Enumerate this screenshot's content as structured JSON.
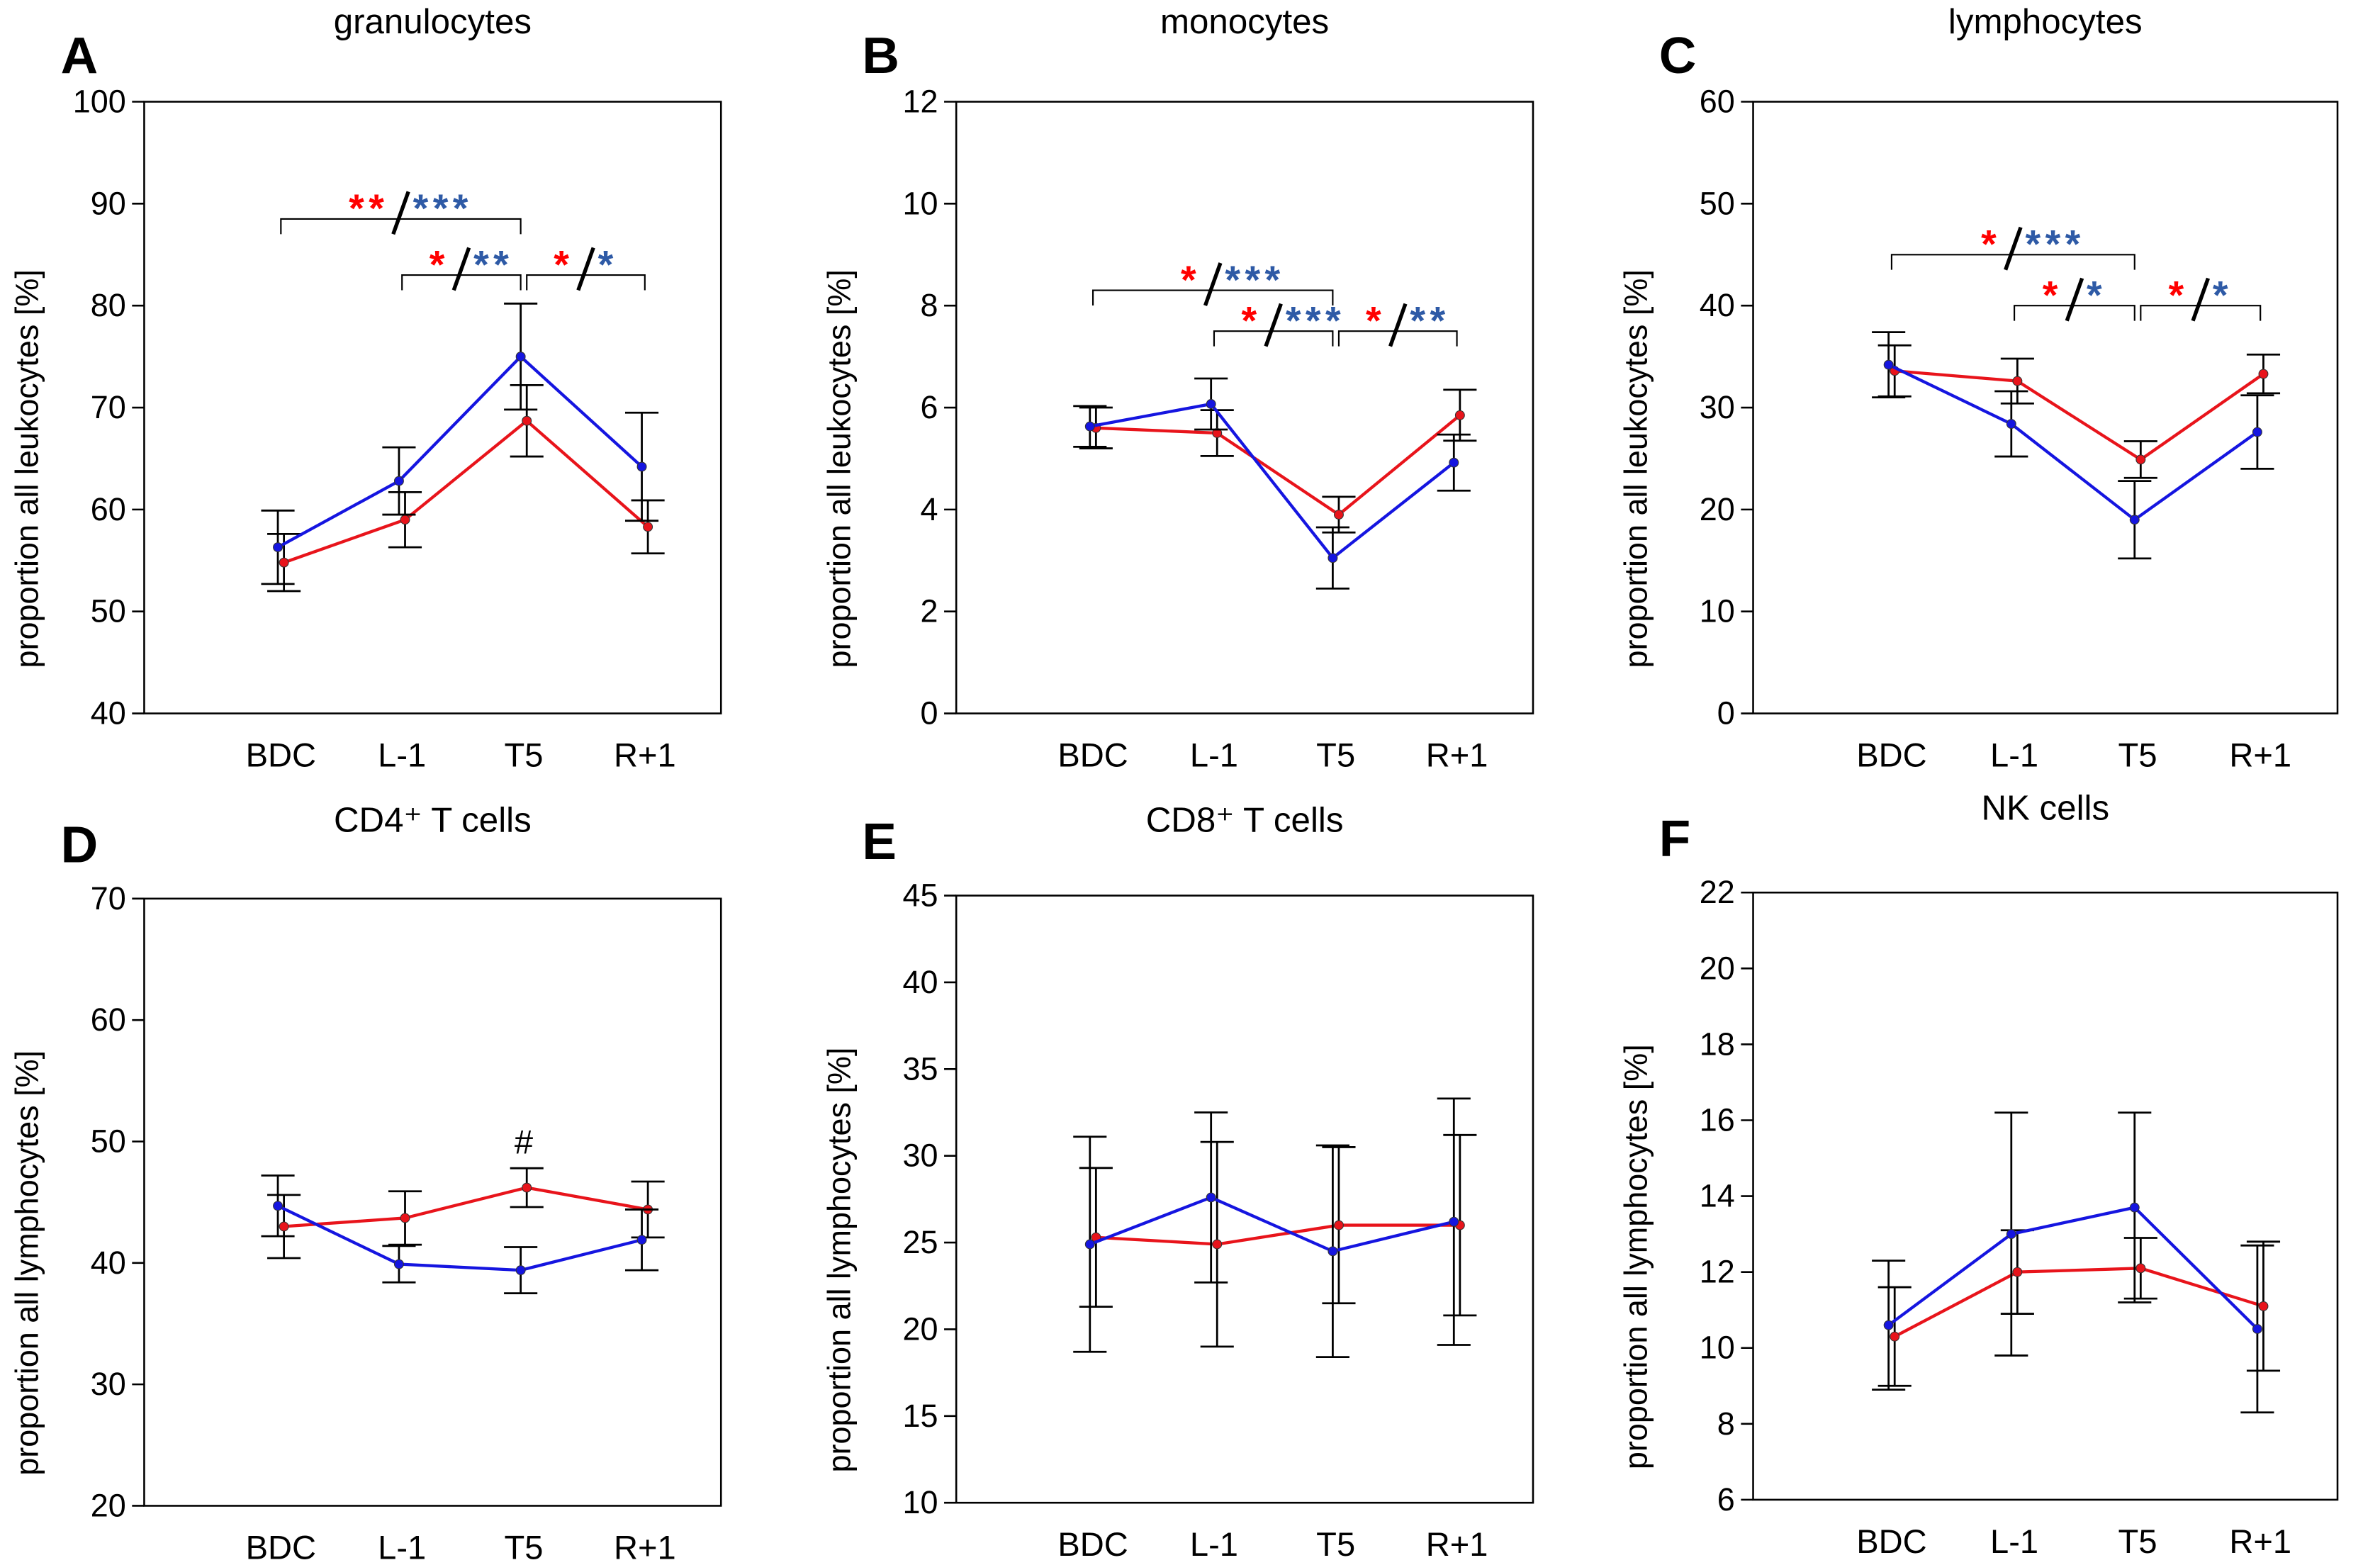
{
  "colors": {
    "series_red": "#e8141b",
    "series_blue": "#1515e0",
    "star_red": "#ff0000",
    "star_blue": "#2e5aa6",
    "axis": "#000000"
  },
  "chart_data": [
    {
      "letter": "A",
      "type": "line",
      "title": "granulocytes",
      "ylabel": "proportion all leukocytes [%]",
      "ylim": [
        40,
        100
      ],
      "yticks": [
        40,
        50,
        60,
        70,
        80,
        90,
        100
      ],
      "categories": [
        "BDC",
        "L-1",
        "T5",
        "R+1"
      ],
      "series": [
        {
          "color": "red",
          "values": [
            54.8,
            59.0,
            68.7,
            58.3
          ],
          "error": [
            2.8,
            2.7,
            3.5,
            2.6
          ]
        },
        {
          "color": "blue",
          "values": [
            56.3,
            62.8,
            75.0,
            64.2
          ],
          "error": [
            3.6,
            3.3,
            5.2,
            5.3
          ]
        }
      ],
      "significance": [
        {
          "from": "BDC",
          "to": "T5",
          "y": 88.5,
          "red": "**",
          "blue": "***"
        },
        {
          "from": "L-1",
          "to": "T5",
          "y": 83,
          "red": "*",
          "blue": "**"
        },
        {
          "from": "T5",
          "to": "R+1",
          "y": 83,
          "red": "*",
          "blue": "*"
        }
      ],
      "annotations": []
    },
    {
      "letter": "B",
      "type": "line",
      "title": "monocytes",
      "ylabel": "proportion all leukocytes [%]",
      "ylim": [
        0,
        12
      ],
      "yticks": [
        0,
        2,
        4,
        6,
        8,
        10,
        12
      ],
      "categories": [
        "BDC",
        "L-1",
        "T5",
        "R+1"
      ],
      "series": [
        {
          "color": "red",
          "values": [
            5.6,
            5.5,
            3.9,
            5.85
          ],
          "error": [
            0.4,
            0.45,
            0.35,
            0.5
          ]
        },
        {
          "color": "blue",
          "values": [
            5.63,
            6.07,
            3.05,
            4.92
          ],
          "error": [
            0.4,
            0.5,
            0.6,
            0.55
          ]
        }
      ],
      "significance": [
        {
          "from": "BDC",
          "to": "T5",
          "y": 8.3,
          "red": "*",
          "blue": "***"
        },
        {
          "from": "L-1",
          "to": "T5",
          "y": 7.5,
          "red": "*",
          "blue": "***"
        },
        {
          "from": "T5",
          "to": "R+1",
          "y": 7.5,
          "red": "*",
          "blue": "**"
        }
      ],
      "annotations": []
    },
    {
      "letter": "C",
      "type": "line",
      "title": "lymphocytes",
      "ylabel": "proportion all leukocytes [%]",
      "ylim": [
        0,
        60
      ],
      "yticks": [
        0,
        10,
        20,
        30,
        40,
        50,
        60
      ],
      "categories": [
        "BDC",
        "L-1",
        "T5",
        "R+1"
      ],
      "series": [
        {
          "color": "red",
          "values": [
            33.6,
            32.6,
            24.9,
            33.3
          ],
          "error": [
            2.5,
            2.2,
            1.8,
            1.9
          ]
        },
        {
          "color": "blue",
          "values": [
            34.2,
            28.4,
            19.0,
            27.6
          ],
          "error": [
            3.2,
            3.2,
            3.8,
            3.6
          ]
        }
      ],
      "significance": [
        {
          "from": "BDC",
          "to": "T5",
          "y": 45,
          "red": "*",
          "blue": "***"
        },
        {
          "from": "L-1",
          "to": "T5",
          "y": 40,
          "red": "*",
          "blue": "*"
        },
        {
          "from": "T5",
          "to": "R+1",
          "y": 40,
          "red": "*",
          "blue": "*"
        }
      ],
      "annotations": []
    },
    {
      "letter": "D",
      "type": "line",
      "title": "CD4⁺ T cells",
      "ylabel": "proportion all lymphocytes [%]",
      "ylim": [
        20,
        70
      ],
      "yticks": [
        20,
        30,
        40,
        50,
        60,
        70
      ],
      "categories": [
        "BDC",
        "L-1",
        "T5",
        "R+1"
      ],
      "series": [
        {
          "color": "red",
          "values": [
            43.0,
            43.7,
            46.2,
            44.4
          ],
          "error": [
            2.6,
            2.2,
            1.6,
            2.3
          ]
        },
        {
          "color": "blue",
          "values": [
            44.7,
            39.9,
            39.4,
            41.9
          ],
          "error": [
            2.5,
            1.5,
            1.9,
            2.5
          ]
        }
      ],
      "significance": [],
      "annotations": [
        {
          "category": "T5",
          "y": 49,
          "text": "#"
        }
      ]
    },
    {
      "letter": "E",
      "type": "line",
      "title": "CD8⁺ T cells",
      "ylabel": "proportion all lymphocytes [%]",
      "ylim": [
        10,
        45
      ],
      "yticks": [
        10,
        15,
        20,
        25,
        30,
        35,
        40,
        45
      ],
      "categories": [
        "BDC",
        "L-1",
        "T5",
        "R+1"
      ],
      "series": [
        {
          "color": "red",
          "values": [
            25.3,
            24.9,
            26.0,
            26.0
          ],
          "error": [
            4.0,
            5.9,
            4.5,
            5.2
          ]
        },
        {
          "color": "blue",
          "values": [
            24.9,
            27.6,
            24.5,
            26.2
          ],
          "error": [
            6.2,
            4.9,
            6.1,
            7.1
          ]
        }
      ],
      "significance": [],
      "annotations": []
    },
    {
      "letter": "F",
      "type": "line",
      "title": "NK cells",
      "ylabel": "proportion all lymphocytes [%]",
      "ylim": [
        6,
        22
      ],
      "yticks": [
        6,
        8,
        10,
        12,
        14,
        16,
        18,
        20,
        22
      ],
      "categories": [
        "BDC",
        "L-1",
        "T5",
        "R+1"
      ],
      "series": [
        {
          "color": "red",
          "values": [
            10.3,
            12.0,
            12.1,
            11.1
          ],
          "error": [
            1.3,
            1.1,
            0.8,
            1.7
          ]
        },
        {
          "color": "blue",
          "values": [
            10.6,
            13.0,
            13.7,
            10.5
          ],
          "error": [
            1.7,
            3.2,
            2.5,
            2.2
          ]
        }
      ],
      "significance": [],
      "annotations": []
    }
  ]
}
